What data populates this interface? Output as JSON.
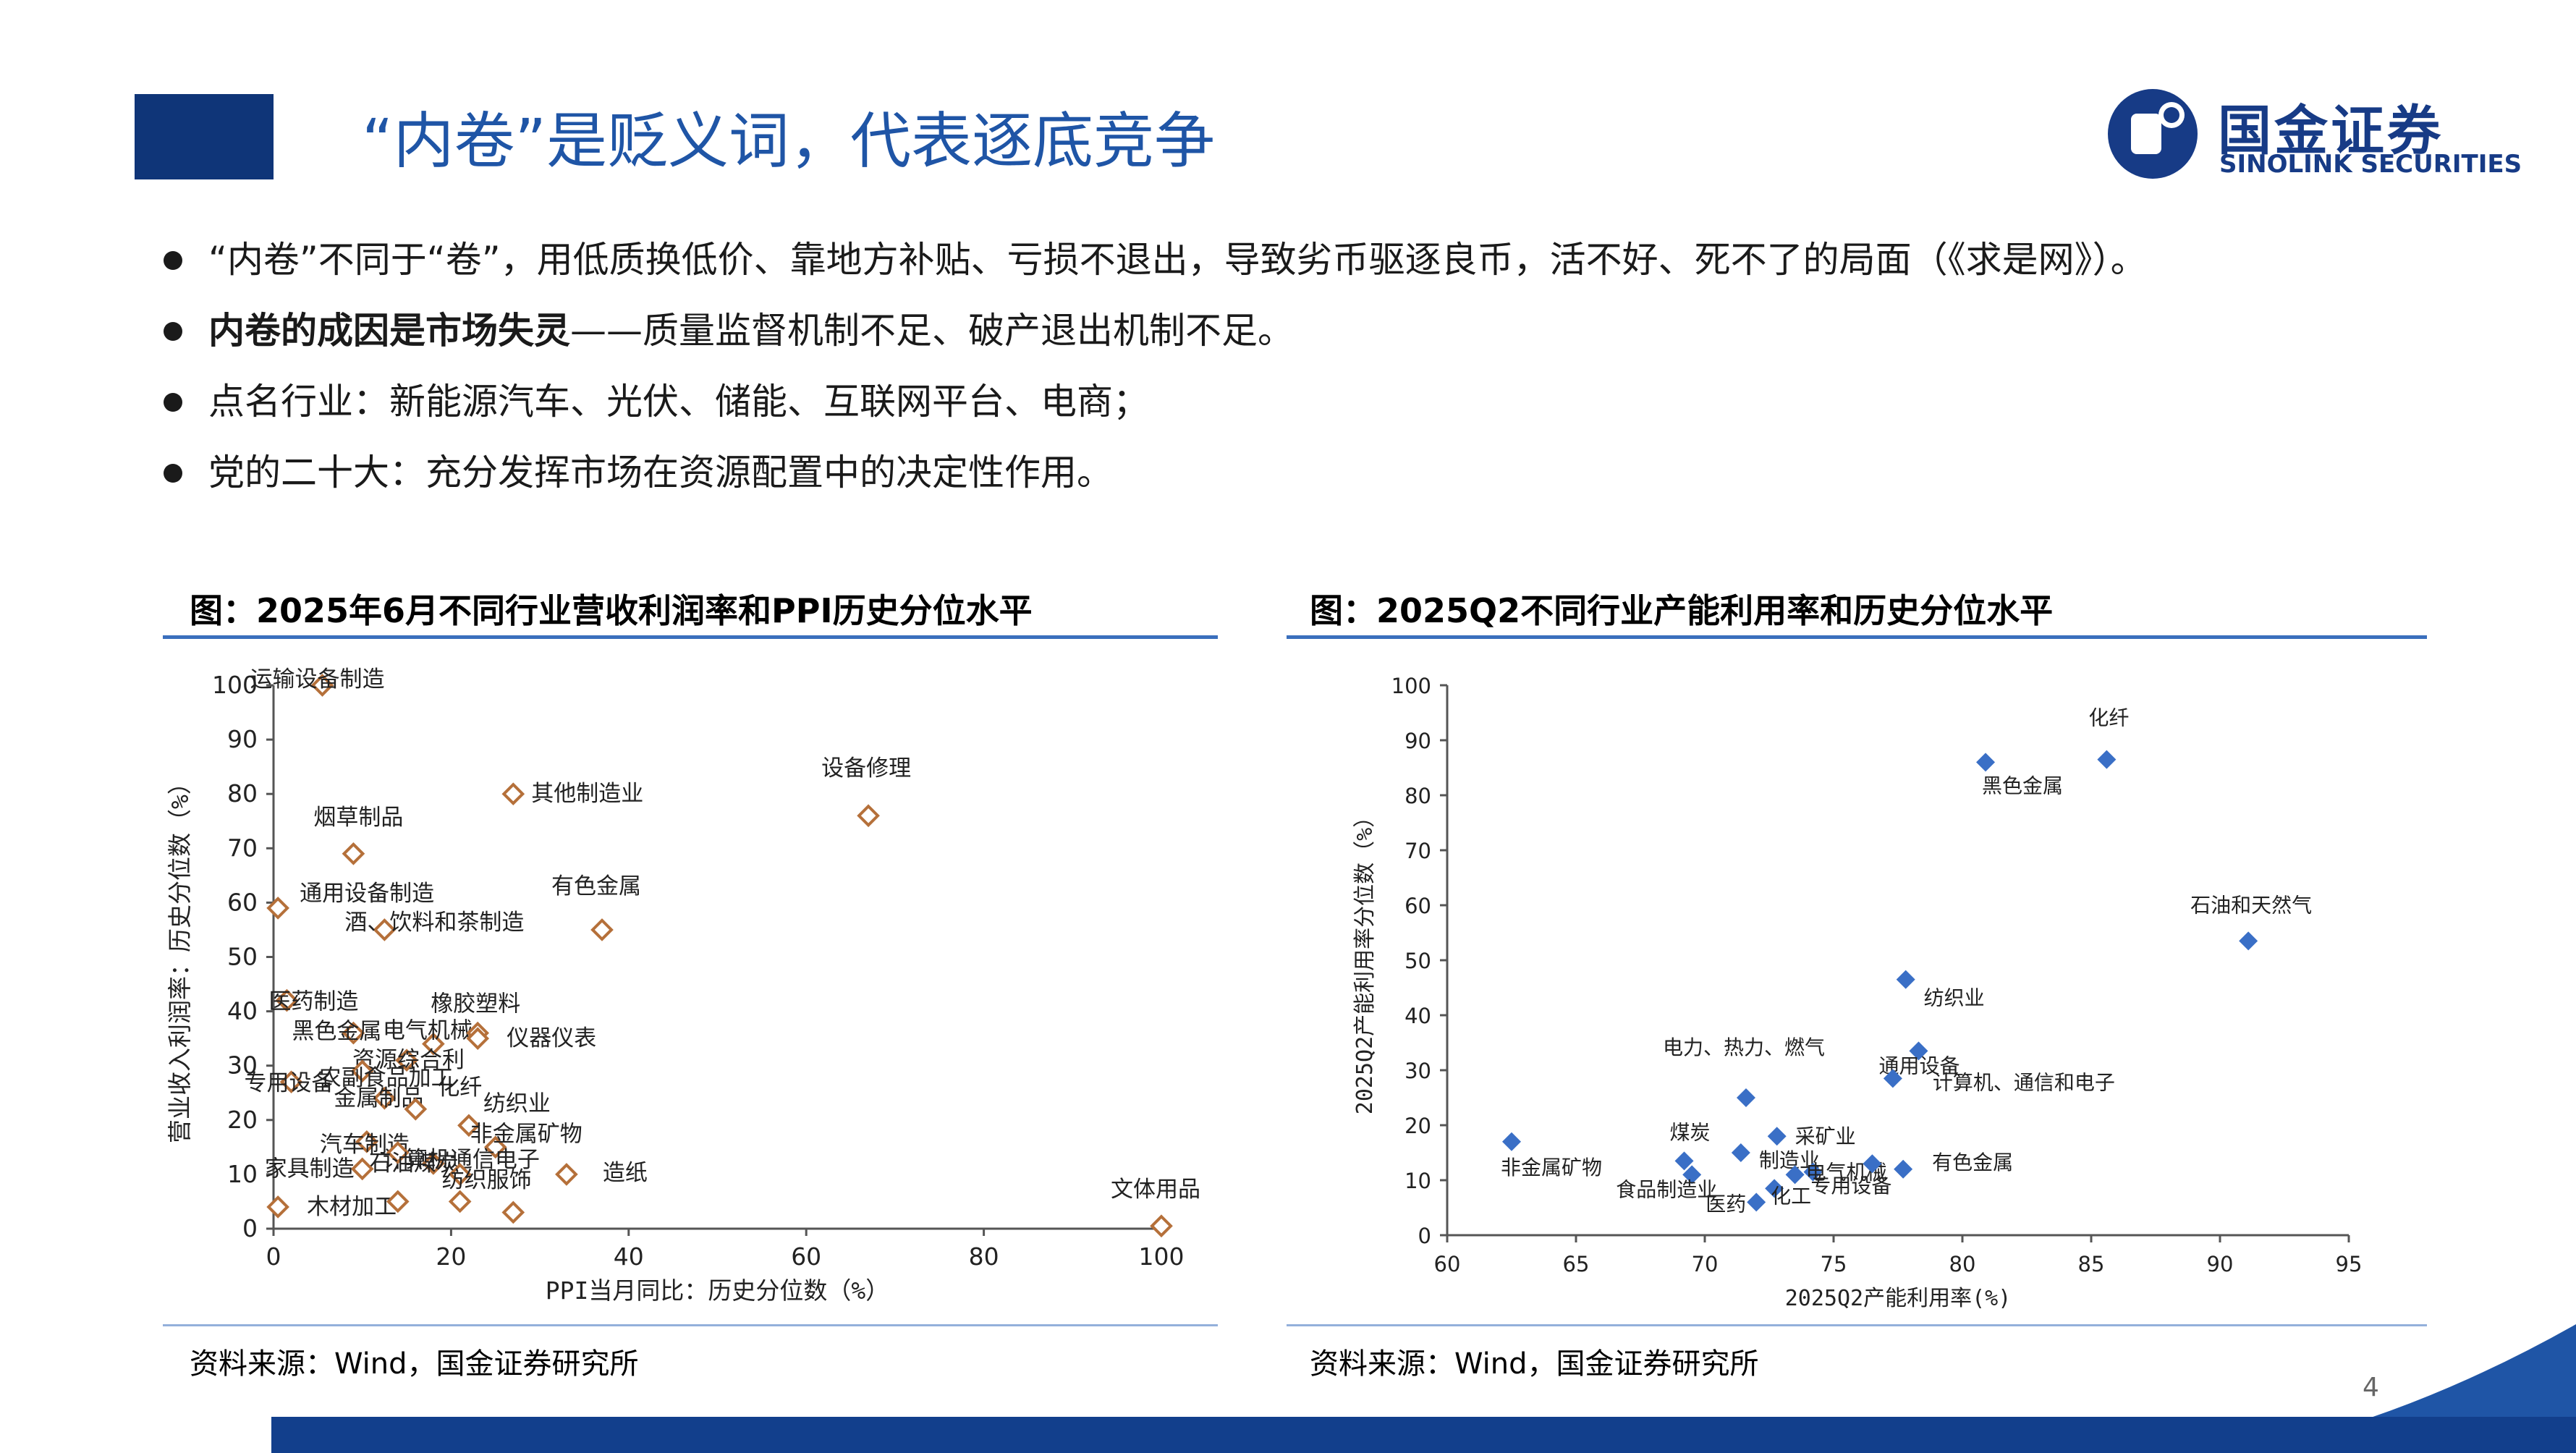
{
  "slide": {
    "title": "“内卷”是贬义词，代表逐底竞争",
    "page_number": "4",
    "logo": {
      "cn": "国金证券",
      "en": "SINOLINK SECURITIES"
    },
    "bullets": [
      {
        "bold": "",
        "text": "“内卷”不同于“卷”，用低质换低价、靠地方补贴、亏损不退出，导致劣币驱逐良币，活不好、死不了的局面（《求是网》）。"
      },
      {
        "bold": "内卷的成因是市场失灵",
        "text": "——质量监督机制不足、破产退出机制不足。"
      },
      {
        "bold": "",
        "text": "点名行业：新能源汽车、光伏、储能、互联网平台、电商；"
      },
      {
        "bold": "",
        "text": "党的二十大：充分发挥市场在资源配置中的决定性作用。"
      }
    ],
    "left_panel": {
      "title": "图：2025年6月不同行业营收利润率和PPI历史分位水平",
      "source": "资料来源：Wind，国金证券研究所"
    },
    "right_panel": {
      "title": "图：2025Q2不同行业产能利用率和历史分位水平",
      "source": "资料来源：Wind，国金证券研究所"
    }
  },
  "chart_data": [
    {
      "type": "scatter",
      "xlabel": "PPI当月同比：历史分位数（%）",
      "ylabel": "营业收入利润率：历史分位数（%）",
      "xlim": [
        0,
        100
      ],
      "ylim": [
        0,
        100
      ],
      "xticks": [
        0,
        20,
        40,
        60,
        80,
        100
      ],
      "yticks": [
        0,
        10,
        20,
        30,
        40,
        50,
        60,
        70,
        80,
        90,
        100
      ],
      "marker": "hollow-diamond",
      "marker_color": "#b5703a",
      "points": [
        {
          "label": "运输设备制造",
          "x": 5.5,
          "y": 100
        },
        {
          "label": "设备修理",
          "x": 67,
          "y": 76
        },
        {
          "label": "其他制造业",
          "x": 27,
          "y": 80
        },
        {
          "label": "烟草制品",
          "x": 9,
          "y": 69
        },
        {
          "label": "通用设备制造",
          "x": 0.5,
          "y": 59
        },
        {
          "label": "酒、饮料和茶制造",
          "x": 12.5,
          "y": 55
        },
        {
          "label": "有色金属",
          "x": 37,
          "y": 55
        },
        {
          "label": "医药制造",
          "x": 1.5,
          "y": 42
        },
        {
          "label": "黑色金属",
          "x": 9,
          "y": 36
        },
        {
          "label": "电气机械",
          "x": 18,
          "y": 34
        },
        {
          "label": "橡胶塑料",
          "x": 23,
          "y": 36
        },
        {
          "label": "专用设备",
          "x": 2,
          "y": 27
        },
        {
          "label": "资源综合利",
          "x": 15,
          "y": 31
        },
        {
          "label": "农副食品加工",
          "x": 10,
          "y": 29
        },
        {
          "label": "仪器仪表",
          "x": 23,
          "y": 35
        },
        {
          "label": "金属制品",
          "x": 12.5,
          "y": 24
        },
        {
          "label": "化纤",
          "x": 16,
          "y": 22
        },
        {
          "label": "汽车制造",
          "x": 10.5,
          "y": 16
        },
        {
          "label": "纺织业",
          "x": 22,
          "y": 19
        },
        {
          "label": "非金属矿物",
          "x": 25,
          "y": 15
        },
        {
          "label": "计算机通信电子",
          "x": 18,
          "y": 12
        },
        {
          "label": "石油煤炭",
          "x": 14,
          "y": 14
        },
        {
          "label": "家具制造",
          "x": 10,
          "y": 11
        },
        {
          "label": "纺织服饰",
          "x": 21,
          "y": 10
        },
        {
          "label": "造纸",
          "x": 33,
          "y": 10
        },
        {
          "label": "木材加工",
          "x": 0.5,
          "y": 4
        },
        {
          "label": "",
          "x": 14,
          "y": 5
        },
        {
          "label": "",
          "x": 21,
          "y": 5
        },
        {
          "label": "",
          "x": 27,
          "y": 3
        },
        {
          "label": "文体用品",
          "x": 100,
          "y": 0.5
        }
      ]
    },
    {
      "type": "scatter",
      "xlabel": "2025Q2产能利用率(%)",
      "ylabel": "2025Q2产能利用率分位数（%）",
      "xlim": [
        60,
        95
      ],
      "ylim": [
        0,
        100
      ],
      "xticks": [
        60,
        65,
        70,
        75,
        80,
        85,
        90,
        95
      ],
      "yticks": [
        0,
        10,
        20,
        30,
        40,
        50,
        60,
        70,
        80,
        90,
        100
      ],
      "marker": "filled-diamond",
      "marker_color": "#3a6fc6",
      "points": [
        {
          "label": "化纤",
          "x": 85.6,
          "y": 86.5
        },
        {
          "label": "黑色金属",
          "x": 80.9,
          "y": 86
        },
        {
          "label": "石油和天然气",
          "x": 91.1,
          "y": 53.5
        },
        {
          "label": "纺织业",
          "x": 77.8,
          "y": 46.5
        },
        {
          "label": "通用设备",
          "x": 78.3,
          "y": 33.5
        },
        {
          "label": "计算机、通信和电子",
          "x": 77.3,
          "y": 28.5
        },
        {
          "label": "电力、热力、燃气",
          "x": 71.6,
          "y": 25
        },
        {
          "label": "采矿业",
          "x": 72.8,
          "y": 18
        },
        {
          "label": "非金属矿物",
          "x": 62.5,
          "y": 17
        },
        {
          "label": "煤炭",
          "x": 69.2,
          "y": 13.5
        },
        {
          "label": "食品制造业",
          "x": 69.5,
          "y": 11
        },
        {
          "label": "制造业",
          "x": 71.4,
          "y": 15
        },
        {
          "label": "电气机械",
          "x": 74.2,
          "y": 11.5
        },
        {
          "label": "专用设备",
          "x": 76.5,
          "y": 13
        },
        {
          "label": "有色金属",
          "x": 77.7,
          "y": 12
        },
        {
          "label": "医药",
          "x": 72.0,
          "y": 6
        },
        {
          "label": "化工",
          "x": 72.7,
          "y": 8.5
        },
        {
          "label": "",
          "x": 73.5,
          "y": 11
        }
      ]
    }
  ]
}
